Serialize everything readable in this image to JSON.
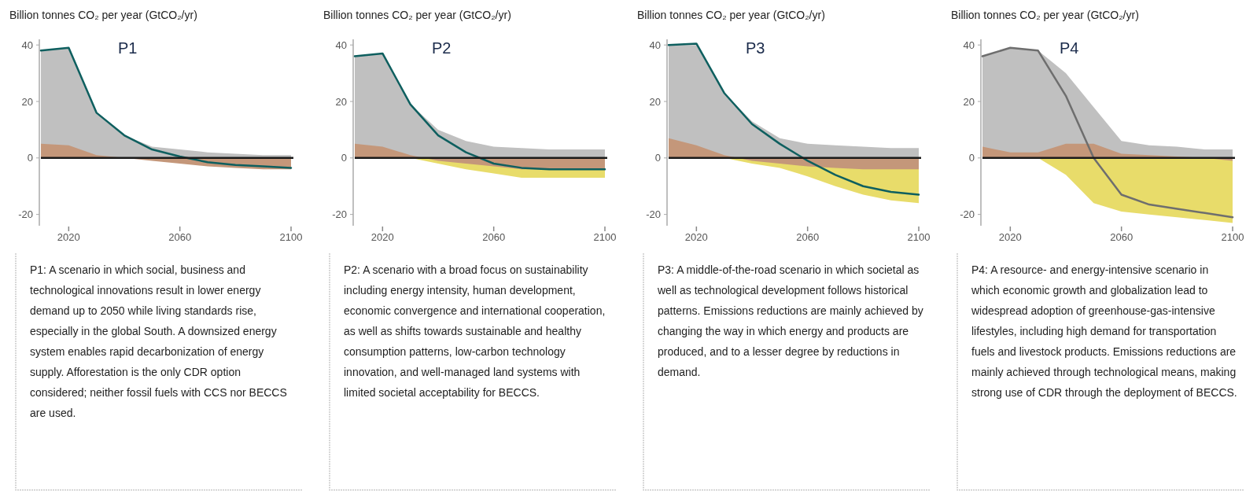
{
  "chart_data": [
    {
      "type": "area",
      "title": "P1",
      "ylabel": "Billion tonnes CO₂ per year (GtCO₂/yr)",
      "x": [
        2010,
        2020,
        2030,
        2040,
        2050,
        2060,
        2070,
        2080,
        2090,
        2100
      ],
      "xlim": [
        2010,
        2100
      ],
      "ylim": [
        -24,
        42
      ],
      "xticks": [
        2020,
        2060,
        2100
      ],
      "yticks": [
        -20,
        0,
        20,
        40
      ],
      "series": [
        {
          "color": "#c0c0c0",
          "values": [
            38,
            39,
            16,
            8,
            4,
            3,
            2,
            1.5,
            1,
            1
          ]
        },
        {
          "color": "#c4977a",
          "values": [
            5,
            4.5,
            1,
            0,
            -1,
            -2,
            -3,
            -3.5,
            -4,
            -4
          ]
        },
        {
          "type": "line",
          "color": "#0e5f5f",
          "values": [
            38,
            39,
            16,
            8,
            3,
            0.5,
            -1.5,
            -2.5,
            -3,
            -3.5
          ]
        }
      ],
      "ref_lines": [
        {
          "axis": "y",
          "value": 0,
          "color": "#1a1a1a"
        }
      ],
      "annotations": [
        "P1: A scenario in which social, business and technological innovations result in lower energy demand up to 2050 while living standards rise, especially in the global South. A downsized energy system enables rapid decarbonization of energy supply. Afforestation is the only CDR option considered; neither fossil fuels with CCS nor BECCS are used."
      ]
    },
    {
      "type": "area",
      "title": "P2",
      "ylabel": "Billion tonnes CO₂ per year (GtCO₂/yr)",
      "x": [
        2010,
        2020,
        2030,
        2040,
        2050,
        2060,
        2070,
        2080,
        2090,
        2100
      ],
      "xlim": [
        2010,
        2100
      ],
      "ylim": [
        -24,
        42
      ],
      "xticks": [
        2020,
        2060,
        2100
      ],
      "yticks": [
        -20,
        0,
        20,
        40
      ],
      "series": [
        {
          "color": "#e8dc6a",
          "values": [
            0,
            0,
            0,
            -2,
            -4,
            -5.5,
            -7,
            -7,
            -7,
            -7
          ]
        },
        {
          "color": "#c0c0c0",
          "values": [
            36,
            37,
            19,
            10,
            6,
            4,
            3.5,
            3,
            3,
            3
          ]
        },
        {
          "color": "#c4977a",
          "values": [
            5,
            4,
            1,
            -1,
            -2,
            -3,
            -4,
            -4,
            -4,
            -4
          ]
        },
        {
          "type": "line",
          "color": "#0e5f5f",
          "values": [
            36,
            37,
            19,
            8,
            2,
            -2,
            -3.5,
            -4,
            -4,
            -4
          ]
        }
      ],
      "ref_lines": [
        {
          "axis": "y",
          "value": 0,
          "color": "#1a1a1a"
        }
      ],
      "annotations": [
        "P2: A scenario with a broad focus on sustainability including energy intensity, human development, economic convergence and international cooperation, as well as shifts towards sustainable and healthy consumption patterns, low-carbon technology innovation, and well-managed land systems with limited societal acceptability for BECCS."
      ]
    },
    {
      "type": "area",
      "title": "P3",
      "ylabel": "Billion tonnes CO₂ per year (GtCO₂/yr)",
      "x": [
        2010,
        2020,
        2030,
        2040,
        2050,
        2060,
        2070,
        2080,
        2090,
        2100
      ],
      "xlim": [
        2010,
        2100
      ],
      "ylim": [
        -24,
        42
      ],
      "xticks": [
        2020,
        2060,
        2100
      ],
      "yticks": [
        -20,
        0,
        20,
        40
      ],
      "series": [
        {
          "color": "#e8dc6a",
          "values": [
            0,
            0,
            0,
            -2,
            -3.5,
            -6.5,
            -10,
            -13,
            -15,
            -16
          ]
        },
        {
          "color": "#c0c0c0",
          "values": [
            40,
            40,
            23,
            13,
            7,
            5,
            4.5,
            4,
            3.5,
            3.5
          ]
        },
        {
          "color": "#c4977a",
          "values": [
            7,
            4.5,
            1,
            -1,
            -2,
            -3,
            -3.5,
            -4,
            -4,
            -4
          ]
        },
        {
          "type": "line",
          "color": "#0e5f5f",
          "values": [
            40,
            40.5,
            23,
            12,
            5,
            -1,
            -6,
            -10,
            -12,
            -13
          ]
        }
      ],
      "ref_lines": [
        {
          "axis": "y",
          "value": 0,
          "color": "#1a1a1a"
        }
      ],
      "annotations": [
        "P3: A middle-of-the-road scenario in which societal as well as technological development follows historical patterns. Emissions reductions are mainly achieved by changing the way in which energy and products are produced, and to a lesser degree by reductions in demand."
      ]
    },
    {
      "type": "area",
      "title": "P4",
      "ylabel": "Billion tonnes CO₂ per year (GtCO₂/yr)",
      "x": [
        2010,
        2020,
        2030,
        2040,
        2050,
        2060,
        2070,
        2080,
        2090,
        2100
      ],
      "xlim": [
        2010,
        2100
      ],
      "ylim": [
        -24,
        42
      ],
      "xticks": [
        2020,
        2060,
        2100
      ],
      "yticks": [
        -20,
        0,
        20,
        40
      ],
      "series": [
        {
          "color": "#e8dc6a",
          "values": [
            0,
            0,
            0,
            -6,
            -16,
            -19,
            -20,
            -21,
            -22,
            -23
          ]
        },
        {
          "color": "#c0c0c0",
          "values": [
            36,
            39,
            38,
            30,
            18,
            6,
            4.5,
            4,
            3,
            3
          ]
        },
        {
          "color": "#c4977a",
          "values": [
            4,
            2,
            2,
            5,
            5,
            1.5,
            1,
            0.5,
            0,
            -1
          ]
        },
        {
          "type": "line",
          "color": "#6e6e6e",
          "values": [
            36,
            39,
            38,
            22,
            0,
            -13,
            -16.5,
            -18,
            -19.5,
            -21
          ]
        }
      ],
      "ref_lines": [
        {
          "axis": "y",
          "value": 0,
          "color": "#1a1a1a"
        }
      ],
      "annotations": [
        "P4: A resource- and energy-intensive scenario in which economic growth and globalization lead to widespread adoption of greenhouse-gas-intensive lifestyles, including high demand for transportation fuels and livestock products. Emissions reductions are mainly achieved through technological means, making strong use of CDR through the deployment of BECCS."
      ]
    }
  ]
}
